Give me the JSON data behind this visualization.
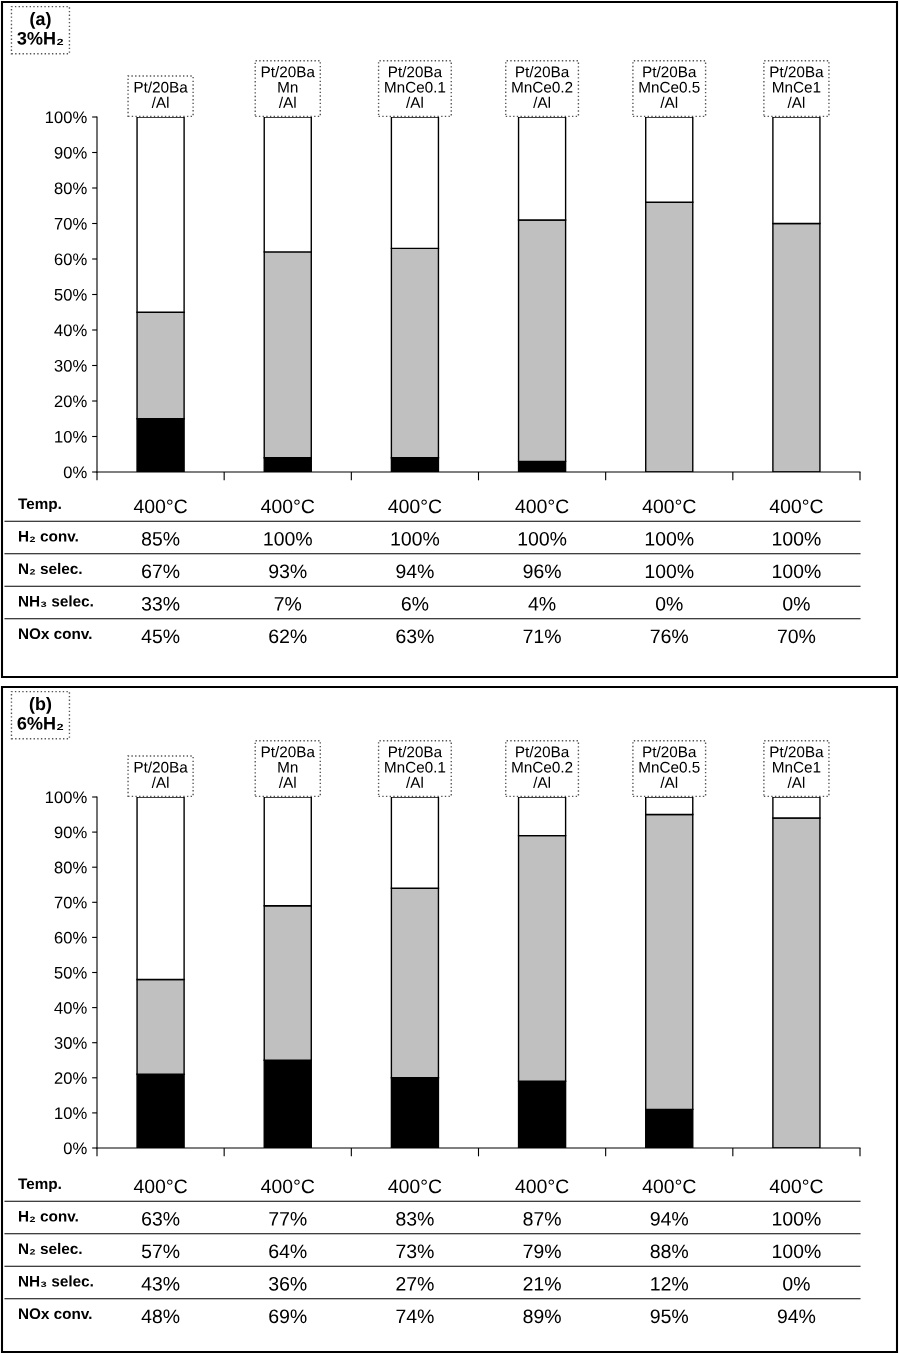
{
  "chart_data": [
    {
      "type": "bar",
      "title": "(a)\n3%H₂",
      "stacked": true,
      "categories": [
        "Pt/20Ba\n/Al",
        "Pt/20Ba\nMn\n/Al",
        "Pt/20Ba\nMnCe0.1\n/Al",
        "Pt/20Ba\nMnCe0.2\n/Al",
        "Pt/20Ba\nMnCe0.5\n/Al",
        "Pt/20Ba\nMnCe1\n/Al"
      ],
      "series": [
        {
          "color": "#000000",
          "values": [
            15,
            4,
            4,
            3,
            0,
            0
          ]
        },
        {
          "color": "#c0c0c0",
          "values": [
            30,
            58,
            59,
            68,
            76,
            70
          ]
        },
        {
          "color": "#ffffff",
          "values": [
            55,
            38,
            37,
            29,
            24,
            30
          ]
        }
      ],
      "ylim": [
        0,
        100
      ],
      "yticks": [
        {
          "value": 0,
          "label": "0%"
        },
        {
          "value": 10,
          "label": "10%"
        },
        {
          "value": 20,
          "label": "20%"
        },
        {
          "value": 30,
          "label": "30%"
        },
        {
          "value": 40,
          "label": "40%"
        },
        {
          "value": 50,
          "label": "50%"
        },
        {
          "value": 60,
          "label": "60%"
        },
        {
          "value": 70,
          "label": "70%"
        },
        {
          "value": 80,
          "label": "80%"
        },
        {
          "value": 90,
          "label": "90%"
        },
        {
          "value": 100,
          "label": "100%"
        }
      ],
      "grid": false,
      "legend": false,
      "annotations": [
        "Temp.",
        "400°C",
        "400°C",
        "400°C",
        "400°C",
        "400°C",
        "400°C",
        "H₂ conv.",
        "85%",
        "100%",
        "100%",
        "100%",
        "100%",
        "100%",
        "N₂ selec.",
        "67%",
        "93%",
        "94%",
        "96%",
        "100%",
        "100%",
        "NH₃ selec.",
        "33%",
        "7%",
        "6%",
        "4%",
        "0%",
        "0%",
        "NOx conv.",
        "45%",
        "62%",
        "63%",
        "71%",
        "76%",
        "70%"
      ]
    },
    {
      "type": "bar",
      "title": "(b)\n6%H₂",
      "stacked": true,
      "categories": [
        "Pt/20Ba\n/Al",
        "Pt/20Ba\nMn\n/Al",
        "Pt/20Ba\nMnCe0.1\n/Al",
        "Pt/20Ba\nMnCe0.2\n/Al",
        "Pt/20Ba\nMnCe0.5\n/Al",
        "Pt/20Ba\nMnCe1\n/Al"
      ],
      "series": [
        {
          "color": "#000000",
          "values": [
            21,
            25,
            20,
            19,
            11,
            0
          ]
        },
        {
          "color": "#c0c0c0",
          "values": [
            27,
            44,
            54,
            70,
            84,
            94
          ]
        },
        {
          "color": "#ffffff",
          "values": [
            52,
            31,
            26,
            11,
            5,
            6
          ]
        }
      ],
      "ylim": [
        0,
        100
      ],
      "yticks": [
        {
          "value": 0,
          "label": "0%"
        },
        {
          "value": 10,
          "label": "10%"
        },
        {
          "value": 20,
          "label": "20%"
        },
        {
          "value": 30,
          "label": "30%"
        },
        {
          "value": 40,
          "label": "40%"
        },
        {
          "value": 50,
          "label": "50%"
        },
        {
          "value": 60,
          "label": "60%"
        },
        {
          "value": 70,
          "label": "70%"
        },
        {
          "value": 80,
          "label": "80%"
        },
        {
          "value": 90,
          "label": "90%"
        },
        {
          "value": 100,
          "label": "100%"
        }
      ],
      "grid": false,
      "legend": false,
      "annotations": [
        "Temp.",
        "400°C",
        "400°C",
        "400°C",
        "400°C",
        "400°C",
        "400°C",
        "H₂ conv.",
        "63%",
        "77%",
        "83%",
        "87%",
        "94%",
        "100%",
        "N₂ selec.",
        "57%",
        "64%",
        "73%",
        "79%",
        "88%",
        "100%",
        "NH₃ selec.",
        "43%",
        "36%",
        "27%",
        "21%",
        "12%",
        "0%",
        "NOx conv.",
        "48%",
        "69%",
        "74%",
        "89%",
        "95%",
        "94%"
      ]
    }
  ]
}
